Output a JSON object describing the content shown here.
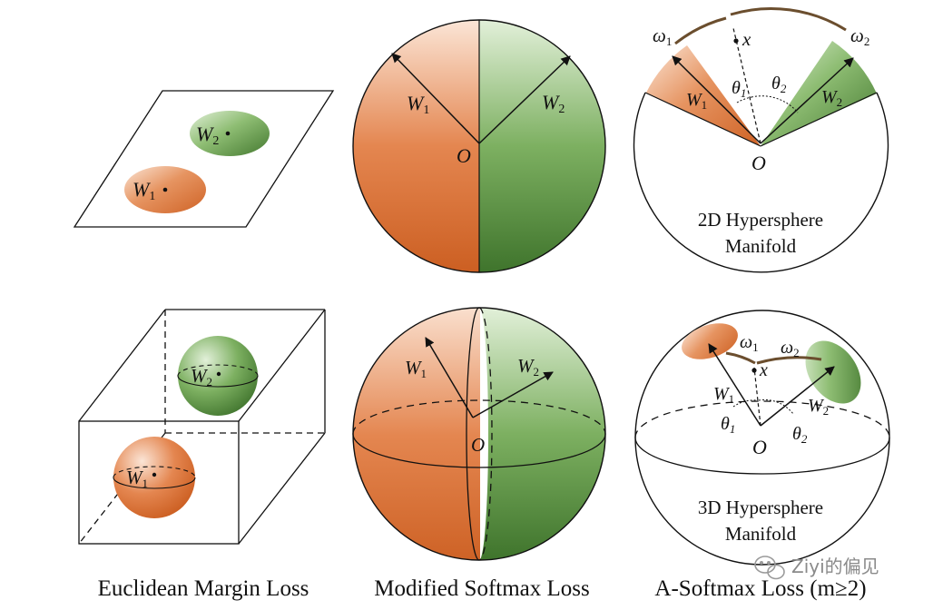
{
  "colors": {
    "orange": "#d86f37",
    "green": "#4f8a3e",
    "arc": "#6b4e2e"
  },
  "panels": {
    "euclid_2d": {
      "w1": "W",
      "w1_sub": "1",
      "w2": "W",
      "w2_sub": "2"
    },
    "euclid_3d": {
      "w1": "W",
      "w1_sub": "1",
      "w2": "W",
      "w2_sub": "2"
    },
    "softmax_2d": {
      "w1": "W",
      "w1_sub": "1",
      "w2": "W",
      "w2_sub": "2",
      "origin": "O"
    },
    "softmax_3d": {
      "w1": "W",
      "w1_sub": "1",
      "w2": "W",
      "w2_sub": "2",
      "origin": "O"
    },
    "asoftmax_2d": {
      "w1": "W",
      "w1_sub": "1",
      "w2": "W",
      "w2_sub": "2",
      "origin": "O",
      "x": "x",
      "omega1": "ω",
      "omega1_sub": "1",
      "omega2": "ω",
      "omega2_sub": "2",
      "theta1": "θ",
      "theta1_sub": "1",
      "theta2": "θ",
      "theta2_sub": "2",
      "title_line1": "2D Hypersphere",
      "title_line2": "Manifold"
    },
    "asoftmax_3d": {
      "w1": "W",
      "w1_sub": "1",
      "w2": "W",
      "w2_sub": "2",
      "origin": "O",
      "x": "x",
      "omega1": "ω",
      "omega1_sub": "1",
      "omega2": "ω",
      "omega2_sub": "2",
      "theta1": "θ",
      "theta1_sub": "1",
      "theta2": "θ",
      "theta2_sub": "2",
      "title_line1": "3D Hypersphere",
      "title_line2": "Manifold"
    }
  },
  "captions": {
    "euclidean": "Euclidean Margin Loss",
    "modified": "Modified Softmax Loss",
    "asoftmax": "A-Softmax Loss (m≥2)"
  },
  "watermark": {
    "text": "Ziyi的偏见",
    "icon": "wechat-icon"
  }
}
